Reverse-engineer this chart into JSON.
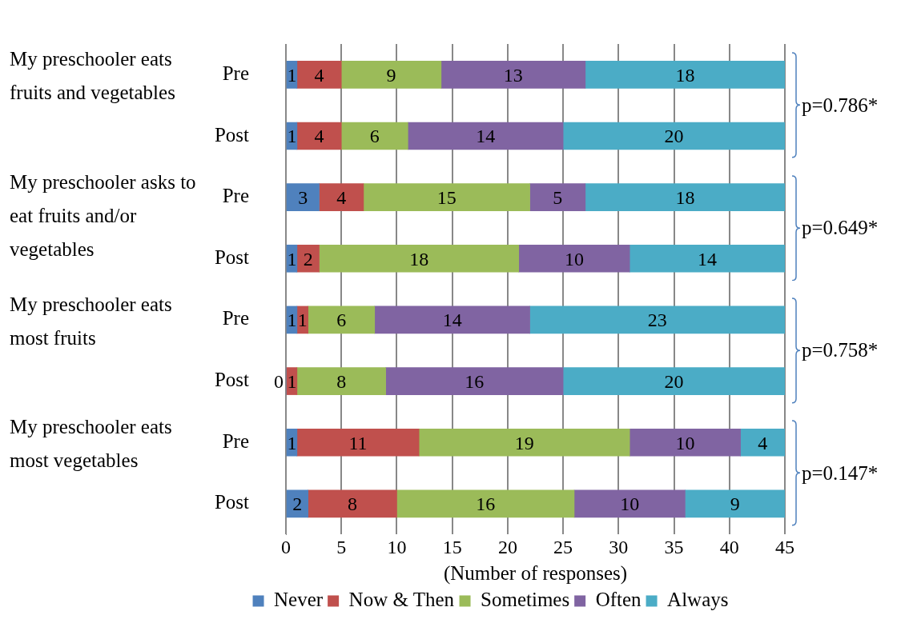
{
  "chart_data": {
    "type": "bar",
    "orientation": "horizontal",
    "stacked": true,
    "xlabel": "(Number of responses)",
    "categories": [
      "Pre",
      "Post",
      "Pre",
      "Post",
      "Pre",
      "Post",
      "Pre",
      "Post"
    ],
    "series": [
      {
        "name": "Never",
        "color": "#4f81bd",
        "values": [
          1,
          1,
          3,
          1,
          1,
          0,
          1,
          2
        ]
      },
      {
        "name": "Now & Then",
        "color": "#c0504d",
        "values": [
          4,
          4,
          4,
          2,
          1,
          1,
          11,
          8
        ]
      },
      {
        "name": "Sometimes",
        "color": "#9bbb59",
        "values": [
          9,
          6,
          15,
          18,
          6,
          8,
          19,
          16
        ]
      },
      {
        "name": "Often",
        "color": "#8064a2",
        "values": [
          13,
          14,
          5,
          10,
          14,
          16,
          10,
          10
        ]
      },
      {
        "name": "Always",
        "color": "#4bacc6",
        "values": [
          18,
          20,
          18,
          14,
          23,
          20,
          4,
          9
        ]
      }
    ],
    "xlim": [
      0,
      45
    ],
    "xticks": [
      0,
      5,
      10,
      15,
      20,
      25,
      30,
      35,
      40,
      45
    ],
    "grid": "x",
    "legend": "bottom",
    "data_labels": true,
    "annotations": [
      "My preschooler eats fruits and vegetables",
      "My preschooler asks to eat fruits and/or vegetables",
      "My preschooler eats most fruits",
      "My preschooler eats most vegetables",
      "p=0.786*",
      "p=0.649*",
      "p=0.758*",
      "p=0.147*"
    ]
  }
}
